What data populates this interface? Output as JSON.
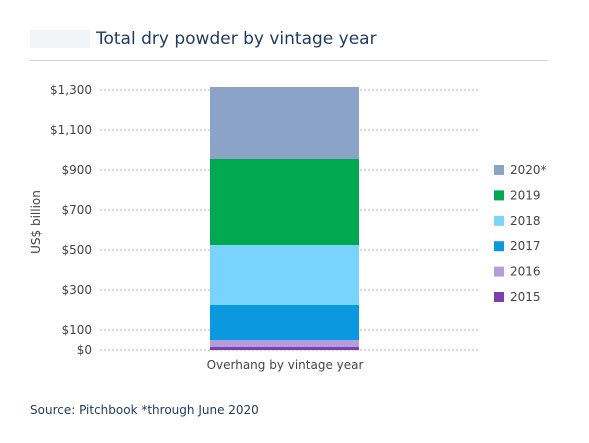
{
  "chart_data": {
    "type": "bar",
    "stacked": true,
    "title": "Total dry powder by vintage year",
    "ylabel": "US$ billion",
    "xlabel": "",
    "categories": [
      "Overhang by vintage year"
    ],
    "yticks": [
      0,
      100,
      300,
      500,
      700,
      900,
      1100,
      1300
    ],
    "ytick_labels": [
      "$0",
      "$100",
      "$300",
      "$500",
      "$700",
      "$900",
      "$1,100",
      "$1,300"
    ],
    "ylim": [
      0,
      1300
    ],
    "grid": "horizontal dotted",
    "legend_position": "right",
    "series": [
      {
        "name": "2015",
        "values": [
          15
        ],
        "color": "#7b3fb0"
      },
      {
        "name": "2016",
        "values": [
          35
        ],
        "color": "#b39ddb"
      },
      {
        "name": "2017",
        "values": [
          175
        ],
        "color": "#0a99de"
      },
      {
        "name": "2018",
        "values": [
          300
        ],
        "color": "#7ad3fb"
      },
      {
        "name": "2019",
        "values": [
          430
        ],
        "color": "#00a94f"
      },
      {
        "name": "2020*",
        "values": [
          360
        ],
        "color": "#8ba3c7"
      }
    ]
  },
  "source_note": "Source: Pitchbook *through June 2020"
}
